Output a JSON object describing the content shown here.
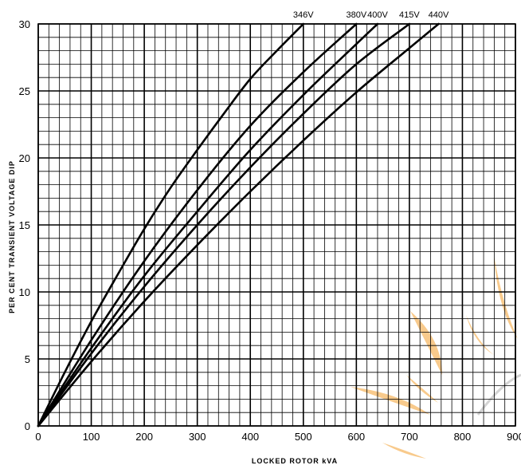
{
  "chart_data": {
    "type": "line",
    "title": "",
    "xlabel": "LOCKED ROTOR kVA",
    "ylabel": "PER CENT TRANSIENT VOLTAGE DIP",
    "xlim": [
      0,
      900
    ],
    "ylim": [
      0,
      30
    ],
    "x_ticks": [
      "0",
      "100",
      "200",
      "300",
      "400",
      "500",
      "600",
      "700",
      "800",
      "900"
    ],
    "y_ticks": [
      "0",
      "5",
      "10",
      "15",
      "20",
      "25",
      "30"
    ],
    "grid": true,
    "legend": "series labels at top of curves",
    "series": [
      {
        "name": "346V",
        "x": [
          0,
          50,
          100,
          150,
          200,
          250,
          300,
          350,
          400,
          450,
          500
        ],
        "y": [
          0,
          4.0,
          7.8,
          11.3,
          14.7,
          17.8,
          20.6,
          23.3,
          25.9,
          28.0,
          30.0
        ]
      },
      {
        "name": "380V",
        "x": [
          0,
          100,
          200,
          300,
          400,
          500,
          600
        ],
        "y": [
          0,
          6.4,
          12.3,
          17.6,
          22.4,
          26.4,
          30.0
        ]
      },
      {
        "name": "400V",
        "x": [
          0,
          100,
          200,
          300,
          400,
          500,
          600,
          640
        ],
        "y": [
          0,
          5.8,
          11.2,
          16.0,
          20.6,
          24.7,
          28.5,
          30.0
        ]
      },
      {
        "name": "415V",
        "x": [
          0,
          100,
          200,
          300,
          400,
          500,
          600,
          700
        ],
        "y": [
          0,
          5.4,
          10.4,
          15.0,
          19.3,
          23.3,
          27.0,
          30.0
        ]
      },
      {
        "name": "440V",
        "x": [
          0,
          100,
          200,
          300,
          400,
          500,
          600,
          700,
          755
        ],
        "y": [
          0,
          4.8,
          9.3,
          13.5,
          17.5,
          21.3,
          24.9,
          28.2,
          30.0
        ]
      }
    ]
  }
}
